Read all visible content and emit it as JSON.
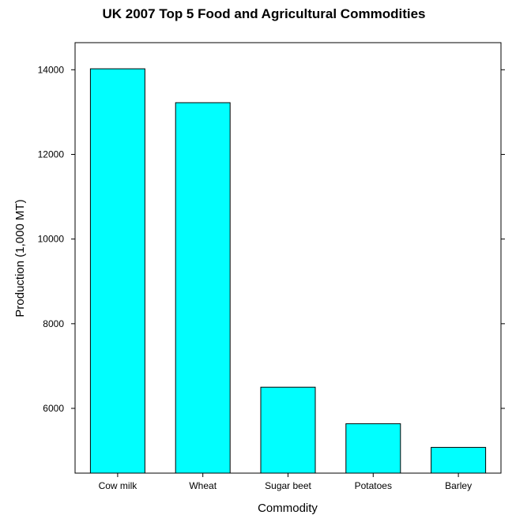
{
  "chart_data": {
    "type": "bar",
    "title": "UK 2007 Top 5 Food and Agricultural Commodities",
    "xlabel": "Commodity",
    "ylabel": "Production (1,000 MT)",
    "categories": [
      "Cow milk",
      "Wheat",
      "Sugar beet",
      "Potatoes",
      "Barley"
    ],
    "values": [
      14023,
      13221,
      6500,
      5639,
      5079
    ],
    "ylim": [
      4470,
      14640
    ],
    "yticks": [
      6000,
      8000,
      10000,
      12000,
      14000
    ],
    "ytick_labels": [
      "6000",
      "8000",
      "10000",
      "12000",
      "14000"
    ],
    "bar_color": "#00ffff",
    "grid": false
  }
}
